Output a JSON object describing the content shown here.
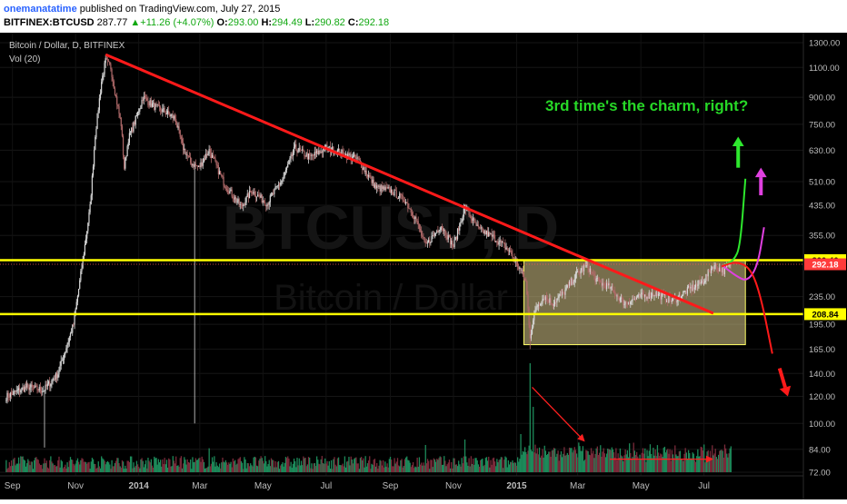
{
  "header": {
    "author": "onemanatatime",
    "published_text": "published on TradingView.com, July 27, 2015",
    "symbol": "BITFINEX:BTCUSD",
    "last": "287.77",
    "change_arrow": "▲",
    "change": "+11.26 (+4.07%)",
    "o_label": "O:",
    "o": "293.00",
    "h_label": "H:",
    "h": "294.49",
    "l_label": "L:",
    "l": "290.82",
    "c_label": "C:",
    "c": "292.18"
  },
  "chart": {
    "title": "Bitcoin / Dollar, D, BITFINEX",
    "volume_label": "Vol (20)",
    "watermark_symbol": "BTCUSD, D",
    "watermark_name": "Bitcoin / Dollar",
    "annotation_text": "3rd time's the charm, right?",
    "colors": {
      "background": "#000000",
      "trendline": "#ff1a1a",
      "support_resistance": "#ffff00",
      "range_box": "#d8c98a",
      "annotation_text": "#27d827",
      "bullish_path": "#2ee82e",
      "alt_path": "#e040e0",
      "bearish_path": "#ff1a1a"
    }
  },
  "chart_data": {
    "type": "candlestick",
    "price_axis": {
      "scale": "log",
      "ticks": [
        72,
        84,
        100,
        120,
        140,
        165,
        195,
        235,
        300,
        355,
        435,
        510,
        630,
        750,
        900,
        1100,
        1300
      ],
      "tick_labels": [
        "72.00",
        "84.00",
        "100.00",
        "120.00",
        "140.00",
        "165.00",
        "195.00",
        "235.00",
        "300.00",
        "355.00",
        "435.00",
        "510.00",
        "630.00",
        "750.00",
        "900.00",
        "1100.00",
        "1300.00"
      ],
      "highlighted_labels": [
        {
          "label": "300.46",
          "value": 300.46,
          "color": "#ffff00"
        },
        {
          "label": "292.18",
          "value": 292.18,
          "color": "#ff3b3b"
        },
        {
          "label": "208.84",
          "value": 208.84,
          "color": "#ffff00"
        }
      ]
    },
    "time_axis": {
      "labels": [
        "Sep",
        "Nov",
        "2014",
        "Mar",
        "May",
        "Jul",
        "Sep",
        "Nov",
        "2015",
        "Mar",
        "May",
        "Jul"
      ],
      "range": [
        "2013-08-20",
        "2015-10-05"
      ]
    },
    "price_path": [
      [
        "2013-08-26",
        120
      ],
      [
        "2013-09-15",
        128
      ],
      [
        "2013-10-01",
        125
      ],
      [
        "2013-10-15",
        140
      ],
      [
        "2013-10-30",
        195
      ],
      [
        "2013-11-08",
        300
      ],
      [
        "2013-11-15",
        430
      ],
      [
        "2013-11-20",
        700
      ],
      [
        "2013-11-26",
        1000
      ],
      [
        "2013-11-30",
        1150
      ],
      [
        "2013-12-05",
        1100
      ],
      [
        "2013-12-10",
        900
      ],
      [
        "2013-12-15",
        750
      ],
      [
        "2013-12-18",
        560
      ],
      [
        "2013-12-22",
        680
      ],
      [
        "2013-12-28",
        760
      ],
      [
        "2014-01-05",
        900
      ],
      [
        "2014-01-15",
        850
      ],
      [
        "2014-01-25",
        820
      ],
      [
        "2014-02-05",
        780
      ],
      [
        "2014-02-12",
        650
      ],
      [
        "2014-02-20",
        580
      ],
      [
        "2014-02-28",
        560
      ],
      [
        "2014-03-10",
        630
      ],
      [
        "2014-03-25",
        500
      ],
      [
        "2014-04-10",
        430
      ],
      [
        "2014-04-20",
        480
      ],
      [
        "2014-05-05",
        440
      ],
      [
        "2014-05-20",
        520
      ],
      [
        "2014-06-01",
        640
      ],
      [
        "2014-06-15",
        600
      ],
      [
        "2014-07-01",
        640
      ],
      [
        "2014-07-15",
        620
      ],
      [
        "2014-08-01",
        590
      ],
      [
        "2014-08-18",
        490
      ],
      [
        "2014-09-01",
        480
      ],
      [
        "2014-09-15",
        450
      ],
      [
        "2014-09-25",
        400
      ],
      [
        "2014-10-05",
        330
      ],
      [
        "2014-10-20",
        380
      ],
      [
        "2014-11-01",
        330
      ],
      [
        "2014-11-12",
        430
      ],
      [
        "2014-11-25",
        370
      ],
      [
        "2014-12-10",
        350
      ],
      [
        "2014-12-25",
        320
      ],
      [
        "2015-01-05",
        280
      ],
      [
        "2015-01-10",
        260
      ],
      [
        "2015-01-14",
        180
      ],
      [
        "2015-01-20",
        220
      ],
      [
        "2015-01-28",
        235
      ],
      [
        "2015-02-05",
        225
      ],
      [
        "2015-02-15",
        240
      ],
      [
        "2015-03-01",
        275
      ],
      [
        "2015-03-10",
        290
      ],
      [
        "2015-03-20",
        260
      ],
      [
        "2015-04-01",
        250
      ],
      [
        "2015-04-15",
        225
      ],
      [
        "2015-05-01",
        235
      ],
      [
        "2015-05-15",
        240
      ],
      [
        "2015-06-01",
        228
      ],
      [
        "2015-06-15",
        245
      ],
      [
        "2015-06-30",
        260
      ],
      [
        "2015-07-10",
        290
      ],
      [
        "2015-07-20",
        280
      ],
      [
        "2015-07-27",
        292
      ]
    ],
    "spikes": [
      [
        "2014-02-24",
        100
      ],
      [
        "2013-10-02",
        85
      ],
      [
        "2015-01-14",
        165
      ]
    ],
    "volume_scale": "relative 0-1",
    "volume_spikes": [
      [
        "2015-01-14",
        1.0
      ],
      [
        "2015-01-17",
        0.6
      ],
      [
        "2014-11-12",
        0.3
      ],
      [
        "2015-01-05",
        0.35
      ],
      [
        "2014-03-10",
        0.22
      ],
      [
        "2014-10-05",
        0.25
      ]
    ],
    "drawings": {
      "trendline": {
        "from": [
          "2013-11-30",
          1200
        ],
        "to": [
          "2015-07-10",
          210
        ]
      },
      "resistance": {
        "value": 300.46
      },
      "support": {
        "value": 208.84
      },
      "current_price_line": {
        "value": 292.18
      },
      "range_box": {
        "from": [
          "2015-01-08",
          300
        ],
        "to": [
          "2015-08-10",
          170
        ]
      },
      "bullish_path": [
        [
          "2015-07-20",
          290
        ],
        [
          "2015-07-30",
          300
        ],
        [
          "2015-08-05",
          330
        ],
        [
          "2015-08-10",
          520
        ]
      ],
      "bullish_arrow": {
        "from": [
          "2015-08-03",
          560
        ],
        "to": [
          "2015-08-03",
          690
        ]
      },
      "alt_path": [
        [
          "2015-07-20",
          288
        ],
        [
          "2015-08-01",
          270
        ],
        [
          "2015-08-12",
          260
        ],
        [
          "2015-08-22",
          290
        ],
        [
          "2015-08-28",
          375
        ]
      ],
      "alt_arrow": {
        "from": [
          "2015-08-25",
          465
        ],
        "to": [
          "2015-08-25",
          560
        ]
      },
      "bearish_path": [
        [
          "2015-07-18",
          288
        ],
        [
          "2015-08-01",
          298
        ],
        [
          "2015-08-15",
          285
        ],
        [
          "2015-08-25",
          235
        ],
        [
          "2015-09-05",
          160
        ]
      ],
      "bearish_arrow": {
        "from": [
          "2015-09-12",
          145
        ],
        "to": [
          "2015-09-20",
          120
        ]
      },
      "volume_down_arrow": {
        "from": [
          "2015-01-16",
          0.78
        ],
        "to": [
          "2015-03-08",
          0.28
        ]
      },
      "volume_flat_arrow": {
        "from": [
          "2015-04-01",
          0.12
        ],
        "to": [
          "2015-07-10",
          0.12
        ]
      }
    }
  }
}
